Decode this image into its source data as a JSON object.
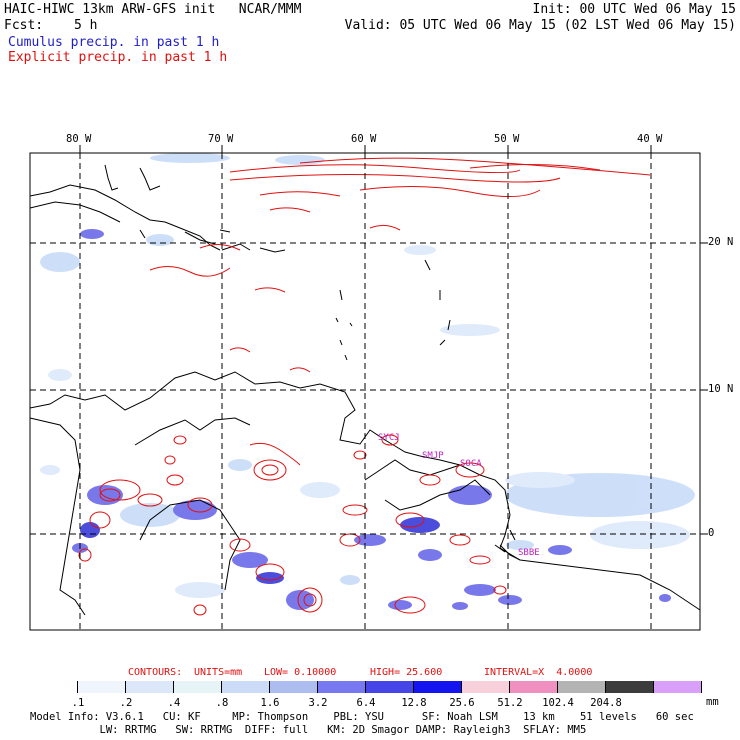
{
  "header": {
    "model_line": "HAIC-HIWC 13km ARW-GFS init   NCAR/MMM",
    "fcst_label": "Fcst:",
    "fcst_value": "5 h",
    "init_line": "Init: 00 UTC Wed 06 May 15",
    "valid_line": "Valid: 05 UTC Wed 06 May 15 (02 LST Wed 06 May 15)",
    "legend_cumulus": "Cumulus precip. in past 1 h",
    "legend_explicit": "Explicit precip. in past 1 h"
  },
  "map": {
    "lon_labels": [
      "80 W",
      "70 W",
      "60 W",
      "50 W",
      "40 W"
    ],
    "lat_labels": [
      "20 N",
      "10 N",
      "0"
    ],
    "station_labels": [
      "SBBE",
      "SMJP",
      "SOCA",
      "SYCJ"
    ],
    "colors": {
      "explicit_contour": "#e01010",
      "cumulus_light": "#c8dcf8",
      "cumulus_mid": "#6a6ae8",
      "cumulus_dark": "#3a3ad8",
      "station_text": "#c020c0",
      "grid": "#000000"
    }
  },
  "contour_info": {
    "contours": "CONTOURS:",
    "units": "UNITS=mm",
    "low": "LOW= 0.10000",
    "high": "HIGH= 25.600",
    "interval": "INTERVAL=X  4.0000"
  },
  "color_scale": {
    "unit": "mm",
    "levels": [
      ".1",
      ".2",
      ".4",
      ".8",
      "1.6",
      "3.2",
      "6.4",
      "12.8",
      "25.6",
      "51.2",
      "102.4",
      "204.8"
    ],
    "colors": [
      "#ffffff",
      "#f0f4fc",
      "#dce8fa",
      "#e6f4f8",
      "#ccdcf8",
      "#aebdf0",
      "#7878f0",
      "#4646e8",
      "#1414f0",
      "#f8d0dc",
      "#f090c0",
      "#b4b4b4",
      "#3c3c3c",
      "#d8a0f8"
    ]
  },
  "footer": {
    "line1": "Model Info: V3.6.1   CU: KF     MP: Thompson    PBL: YSU      SF: Noah LSM    13 km    51 levels   60 sec",
    "line2": "           LW: RRTMG   SW: RRTMG  DIFF: full   KM: 2D Smagor DAMP: Rayleigh3  SFLAY: MM5"
  }
}
